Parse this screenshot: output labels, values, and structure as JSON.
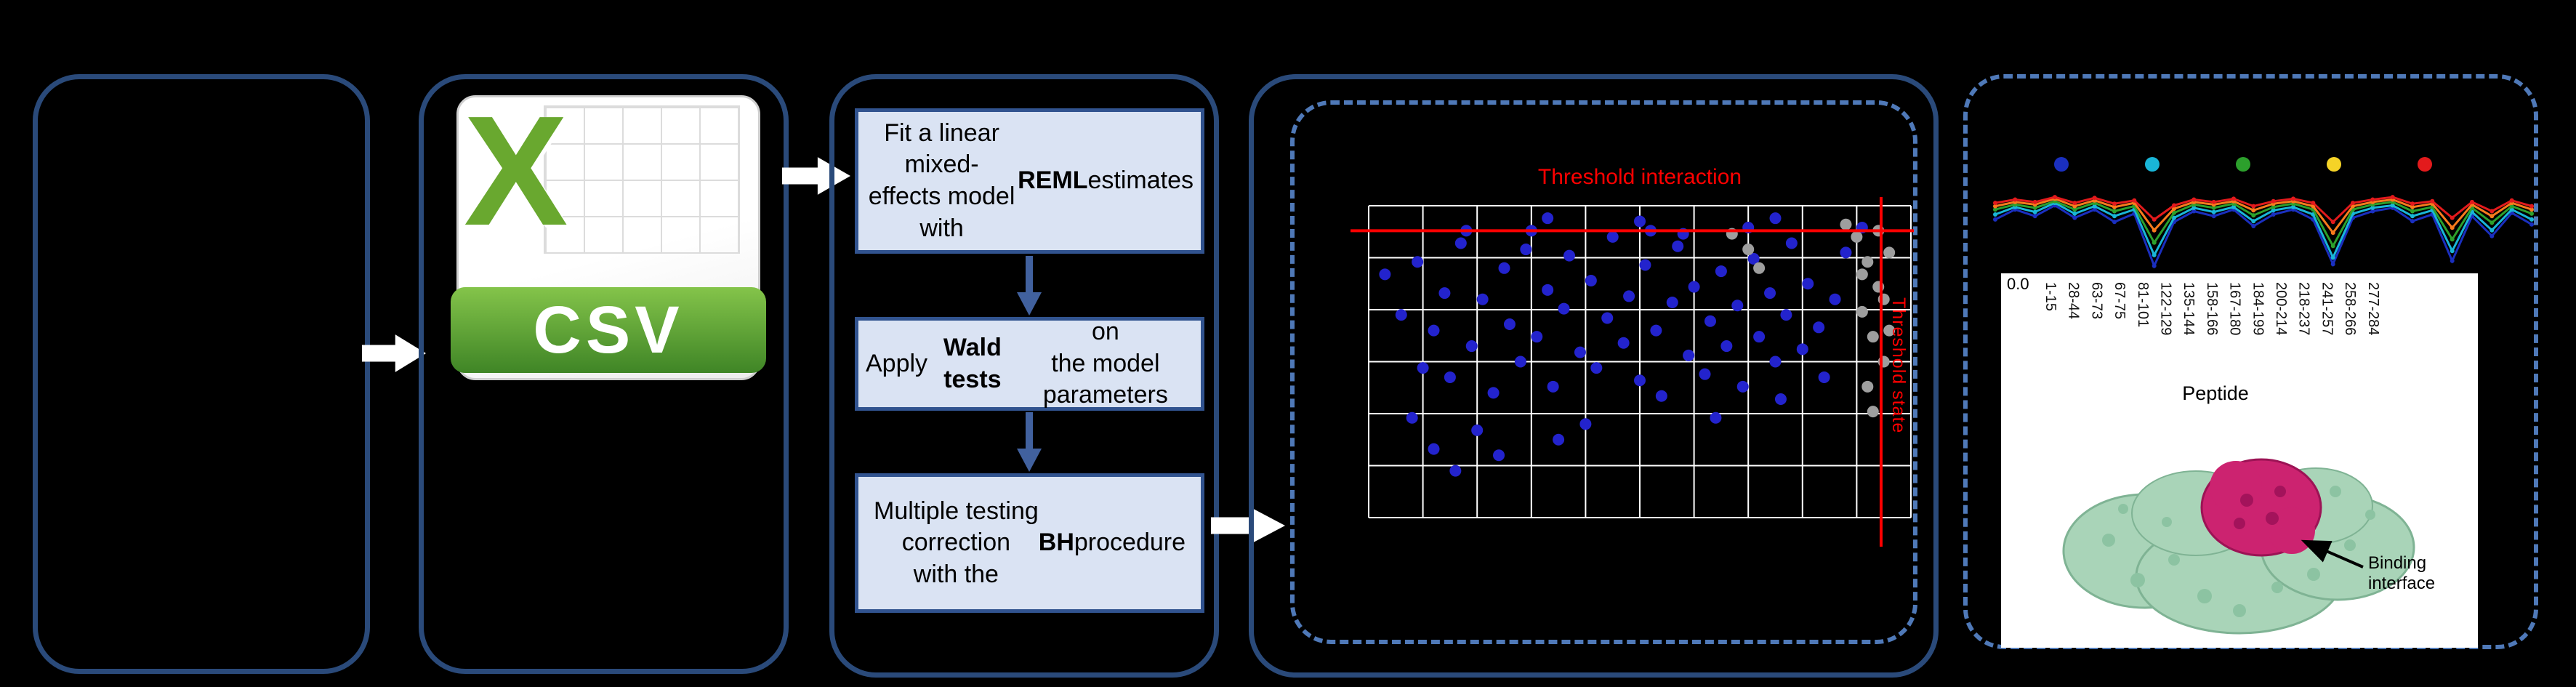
{
  "colors": {
    "background": "#000000",
    "panel_border": "#2a4a7a",
    "dashed_border": "#4f79b8",
    "box_fill": "#dae3f3",
    "box_border": "#31538f",
    "flow_arrow_blue": "#41619e",
    "threshold_red": "#ff0000",
    "scatter_blue": "#2323cd",
    "scatter_gray": "#9e9e9e",
    "grid_white": "#ffffff",
    "csv_green": "#69a82f",
    "protein_green": "#a9d4b8",
    "protein_magenta": "#cc2370"
  },
  "csv_icon": {
    "letter": "X",
    "label": "CSV"
  },
  "steps": [
    {
      "pre": "Fit a linear mixed-\neffects model with\n",
      "bold": "REML",
      "post": " estimates"
    },
    {
      "pre": "Apply ",
      "bold": "Wald tests",
      "post": " on\nthe model parameters"
    },
    {
      "pre": "Multiple testing\ncorrection\nwith the ",
      "bold": "BH",
      "post": " procedure"
    }
  ],
  "scatter": {
    "title": "Threshold interaction",
    "vline_label": "Threshold state",
    "hline_y": 8,
    "vline_x": 94.5,
    "blue_points": [
      [
        3,
        22
      ],
      [
        6,
        35
      ],
      [
        9,
        18
      ],
      [
        12,
        40
      ],
      [
        14,
        28
      ],
      [
        15,
        55
      ],
      [
        17,
        12
      ],
      [
        19,
        45
      ],
      [
        21,
        30
      ],
      [
        23,
        60
      ],
      [
        25,
        20
      ],
      [
        26,
        38
      ],
      [
        28,
        50
      ],
      [
        29,
        14
      ],
      [
        31,
        42
      ],
      [
        33,
        4
      ],
      [
        33,
        27
      ],
      [
        34,
        58
      ],
      [
        36,
        33
      ],
      [
        37,
        16
      ],
      [
        39,
        47
      ],
      [
        41,
        24
      ],
      [
        42,
        52
      ],
      [
        44,
        36
      ],
      [
        45,
        10
      ],
      [
        47,
        44
      ],
      [
        48,
        29
      ],
      [
        50,
        5
      ],
      [
        50,
        56
      ],
      [
        51,
        19
      ],
      [
        53,
        40
      ],
      [
        54,
        61
      ],
      [
        56,
        31
      ],
      [
        57,
        13
      ],
      [
        59,
        48
      ],
      [
        60,
        26
      ],
      [
        62,
        54
      ],
      [
        63,
        37
      ],
      [
        65,
        21
      ],
      [
        66,
        45
      ],
      [
        68,
        32
      ],
      [
        69,
        58
      ],
      [
        71,
        17
      ],
      [
        72,
        42
      ],
      [
        74,
        28
      ],
      [
        75,
        4
      ],
      [
        75,
        50
      ],
      [
        77,
        35
      ],
      [
        78,
        12
      ],
      [
        80,
        46
      ],
      [
        81,
        25
      ],
      [
        83,
        39
      ],
      [
        84,
        55
      ],
      [
        86,
        30
      ],
      [
        88,
        15
      ],
      [
        91,
        7
      ],
      [
        12,
        78
      ],
      [
        16,
        85
      ],
      [
        20,
        72
      ],
      [
        24,
        80
      ],
      [
        8,
        68
      ],
      [
        35,
        75
      ],
      [
        40,
        70
      ],
      [
        30,
        8
      ],
      [
        18,
        8
      ],
      [
        64,
        68
      ],
      [
        76,
        62
      ],
      [
        10,
        52
      ],
      [
        52,
        8
      ],
      [
        58,
        9
      ],
      [
        70,
        7
      ]
    ],
    "gray_points": [
      [
        90,
        10
      ],
      [
        92,
        18
      ],
      [
        94,
        26
      ],
      [
        91,
        34
      ],
      [
        93,
        42
      ],
      [
        95,
        50
      ],
      [
        92,
        58
      ],
      [
        94,
        8
      ],
      [
        96,
        15
      ],
      [
        93,
        66
      ],
      [
        95,
        30
      ],
      [
        91,
        22
      ],
      [
        96,
        40
      ],
      [
        67,
        9
      ],
      [
        70,
        14
      ],
      [
        72,
        20
      ],
      [
        88,
        6
      ]
    ]
  },
  "line_chart": {
    "legend_colors": [
      "#1a2fbf",
      "#19b6d8",
      "#2ca02c",
      "#f5d327",
      "#e31a1c"
    ],
    "series": [
      {
        "name": "navy",
        "color": "#1a2fbf",
        "values": [
          0.42,
          0.3,
          0.38,
          0.25,
          0.4,
          0.3,
          0.45,
          0.35,
          0.98,
          0.45,
          0.32,
          0.38,
          0.3,
          0.5,
          0.36,
          0.3,
          0.42,
          0.96,
          0.4,
          0.32,
          0.28,
          0.44,
          0.36,
          0.92,
          0.38,
          0.62,
          0.34,
          0.48
        ]
      },
      {
        "name": "cyan",
        "color": "#19b6d8",
        "values": [
          0.36,
          0.27,
          0.33,
          0.22,
          0.35,
          0.26,
          0.38,
          0.3,
          0.85,
          0.4,
          0.28,
          0.33,
          0.27,
          0.44,
          0.31,
          0.27,
          0.36,
          0.88,
          0.35,
          0.28,
          0.25,
          0.38,
          0.31,
          0.8,
          0.33,
          0.55,
          0.3,
          0.42
        ]
      },
      {
        "name": "green",
        "color": "#2ca02c",
        "values": [
          0.3,
          0.24,
          0.28,
          0.2,
          0.3,
          0.22,
          0.32,
          0.26,
          0.7,
          0.34,
          0.24,
          0.28,
          0.23,
          0.37,
          0.27,
          0.23,
          0.3,
          0.74,
          0.3,
          0.24,
          0.21,
          0.32,
          0.27,
          0.66,
          0.28,
          0.46,
          0.26,
          0.35
        ]
      },
      {
        "name": "orange",
        "color": "#f97b1c",
        "values": [
          0.26,
          0.21,
          0.24,
          0.17,
          0.26,
          0.19,
          0.27,
          0.22,
          0.55,
          0.29,
          0.21,
          0.24,
          0.2,
          0.31,
          0.23,
          0.2,
          0.26,
          0.58,
          0.26,
          0.21,
          0.18,
          0.27,
          0.23,
          0.52,
          0.24,
          0.38,
          0.22,
          0.3
        ]
      },
      {
        "name": "red",
        "color": "#e31a1c",
        "values": [
          0.22,
          0.18,
          0.21,
          0.15,
          0.22,
          0.16,
          0.23,
          0.19,
          0.42,
          0.25,
          0.18,
          0.21,
          0.17,
          0.26,
          0.2,
          0.17,
          0.22,
          0.45,
          0.22,
          0.18,
          0.15,
          0.23,
          0.2,
          0.4,
          0.21,
          0.32,
          0.19,
          0.26
        ]
      }
    ]
  },
  "peptide_axis": {
    "tick": "0.0",
    "labels": [
      "1-15",
      "28-44",
      "63-73",
      "67-75",
      "81-101",
      "122-129",
      "135-144",
      "158-166",
      "167-180",
      "184-199",
      "200-214",
      "218-237",
      "241-257",
      "258-266",
      "277-284"
    ],
    "title": "Peptide"
  },
  "protein": {
    "annotation": "Binding interface"
  }
}
